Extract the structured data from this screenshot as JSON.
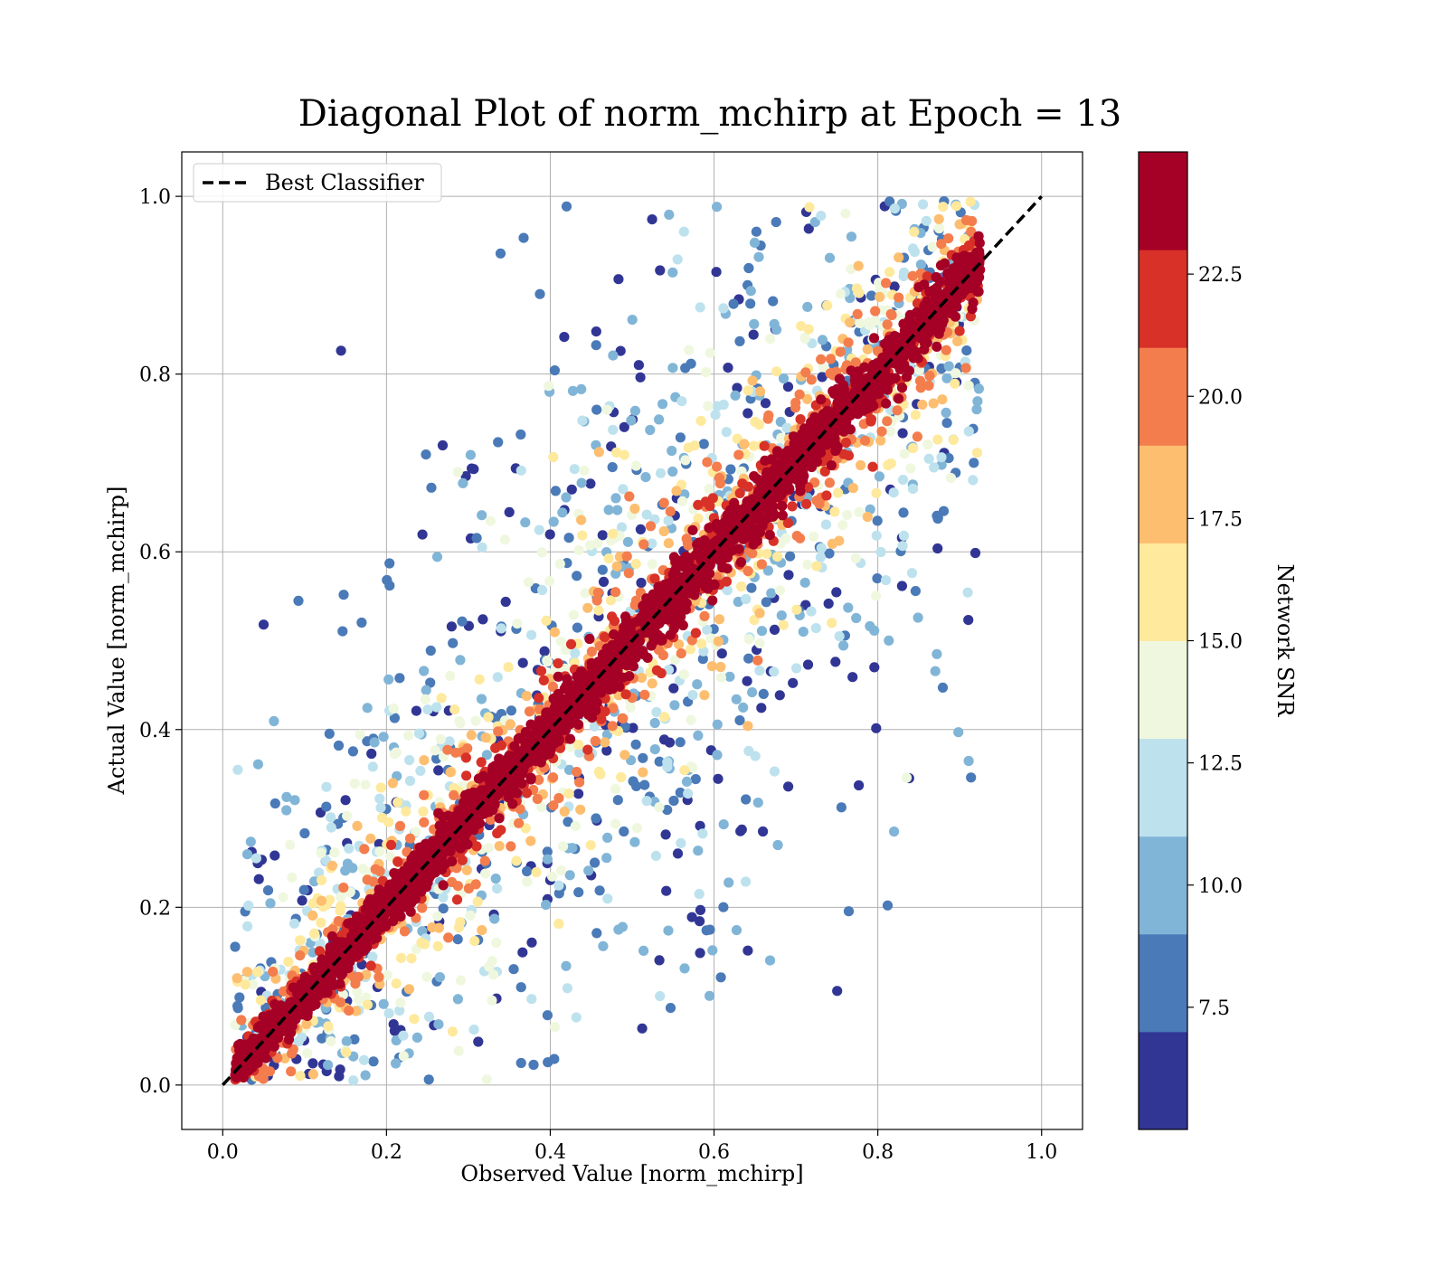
{
  "chart_data": {
    "type": "scatter",
    "title": "Diagonal Plot of norm_mchirp at Epoch = 13",
    "xlabel": "Observed Value [norm_mchirp]",
    "ylabel": "Actual Value [norm_mchirp]",
    "xlim": [
      -0.05,
      1.05
    ],
    "ylim": [
      -0.05,
      1.05
    ],
    "xticks": [
      "0.0",
      "0.2",
      "0.4",
      "0.6",
      "0.8",
      "1.0"
    ],
    "yticks": [
      "0.0",
      "0.2",
      "0.4",
      "0.6",
      "0.8",
      "1.0"
    ],
    "grid": true,
    "legend": {
      "placement": "top-left",
      "entries": [
        {
          "label": "Best Classifier",
          "style": "dashed",
          "color": "#000000"
        }
      ]
    },
    "reference_line": {
      "label": "Best Classifier",
      "x": [
        0.0,
        1.0
      ],
      "y": [
        0.0,
        1.0
      ]
    },
    "color_by": "Network SNR",
    "colorbar": {
      "label": "Network SNR",
      "range": [
        5.0,
        25.0
      ],
      "ticks": [
        "7.5",
        "10.0",
        "12.5",
        "15.0",
        "17.5",
        "20.0",
        "22.5"
      ],
      "tick_values": [
        7.5,
        10.0,
        12.5,
        15.0,
        17.5,
        20.0,
        22.5
      ],
      "bands": [
        {
          "from": 5.0,
          "to": 7.0,
          "color": "#313695"
        },
        {
          "from": 7.0,
          "to": 9.0,
          "color": "#4a7ab7"
        },
        {
          "from": 9.0,
          "to": 11.0,
          "color": "#81b5d7"
        },
        {
          "from": 11.0,
          "to": 13.0,
          "color": "#bde2ee"
        },
        {
          "from": 13.0,
          "to": 15.0,
          "color": "#eff8df"
        },
        {
          "from": 15.0,
          "to": 17.0,
          "color": "#fee99d"
        },
        {
          "from": 17.0,
          "to": 19.0,
          "color": "#fdbe70"
        },
        {
          "from": 19.0,
          "to": 21.0,
          "color": "#f47d4d"
        },
        {
          "from": 21.0,
          "to": 23.0,
          "color": "#d83128"
        },
        {
          "from": 23.0,
          "to": 25.0,
          "color": "#a50026"
        }
      ]
    },
    "point_cloud": {
      "description_of_distribution": "points scatter around the diagonal; high SNR points tightly along the diagonal, low SNR points widely spread",
      "observed_range": [
        0.0,
        0.93
      ],
      "actual_range": [
        0.0,
        1.0
      ]
    }
  }
}
